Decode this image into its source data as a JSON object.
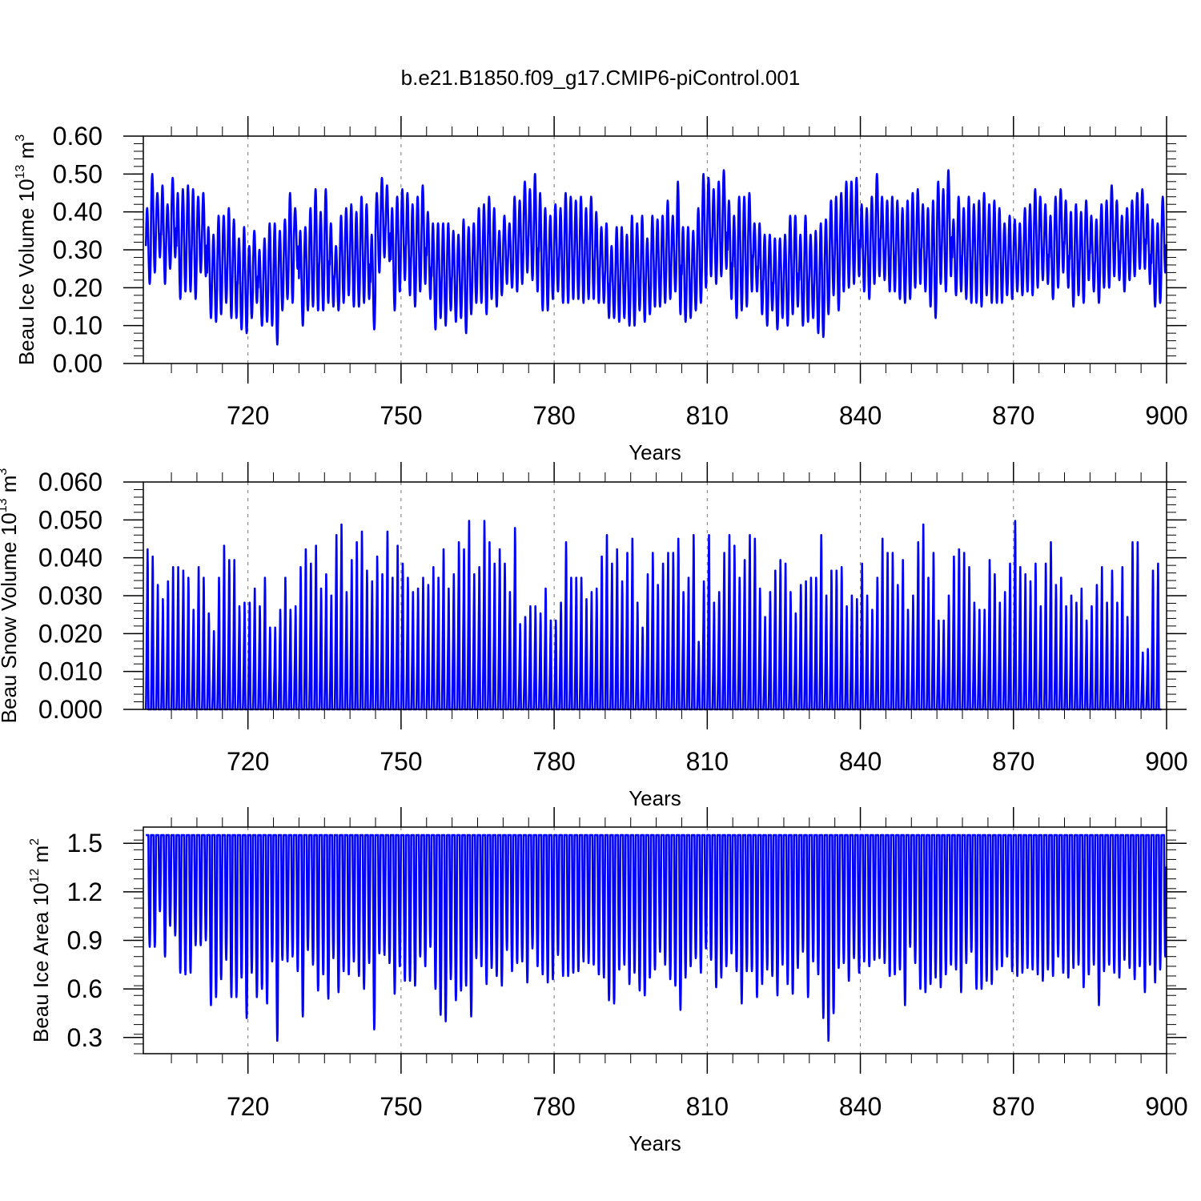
{
  "figure": {
    "title": "b.e21.B1850.f09_g17.CMIP6-piControl.001",
    "line_color": "#0000ff"
  },
  "chart_data": [
    {
      "type": "line",
      "panel": "ice-volume",
      "ylabel": {
        "main": "Beau Ice Volume 10",
        "sup": "13",
        "unit": " m",
        "sup2": "3"
      },
      "xlabel": "Years",
      "xlim": [
        699.5,
        900
      ],
      "ylim": [
        0.0,
        0.6
      ],
      "x_ticks": [
        720,
        750,
        780,
        810,
        840,
        870,
        900
      ],
      "y_ticks": [
        0.0,
        0.1,
        0.2,
        0.3,
        0.4,
        0.5,
        0.6
      ],
      "y_tick_labels": [
        "0.00",
        "0.10",
        "0.20",
        "0.30",
        "0.40",
        "0.50",
        "0.60"
      ],
      "x_grid": true,
      "seasonal_cycle": {
        "start_year": 700,
        "end_year": 900,
        "shape": "sine",
        "annual_maxima": [
          0.41,
          0.5,
          0.45,
          0.47,
          0.42,
          0.49,
          0.45,
          0.46,
          0.47,
          0.46,
          0.44,
          0.45,
          0.36,
          0.34,
          0.39,
          0.39,
          0.41,
          0.38,
          0.33,
          0.36,
          0.31,
          0.35,
          0.3,
          0.33,
          0.37,
          0.37,
          0.35,
          0.38,
          0.45,
          0.41,
          0.35,
          0.36,
          0.41,
          0.46,
          0.4,
          0.46,
          0.37,
          0.31,
          0.39,
          0.41,
          0.42,
          0.4,
          0.44,
          0.42,
          0.34,
          0.45,
          0.49,
          0.47,
          0.41,
          0.44,
          0.46,
          0.45,
          0.42,
          0.44,
          0.47,
          0.4,
          0.37,
          0.37,
          0.37,
          0.37,
          0.35,
          0.34,
          0.38,
          0.36,
          0.37,
          0.41,
          0.42,
          0.44,
          0.41,
          0.35,
          0.39,
          0.37,
          0.44,
          0.43,
          0.48,
          0.46,
          0.5,
          0.45,
          0.41,
          0.39,
          0.42,
          0.41,
          0.45,
          0.44,
          0.43,
          0.44,
          0.41,
          0.44,
          0.4,
          0.36,
          0.37,
          0.31,
          0.36,
          0.36,
          0.34,
          0.39,
          0.37,
          0.39,
          0.33,
          0.39,
          0.38,
          0.39,
          0.43,
          0.39,
          0.48,
          0.36,
          0.36,
          0.35,
          0.41,
          0.5,
          0.49,
          0.46,
          0.48,
          0.51,
          0.43,
          0.39,
          0.44,
          0.44,
          0.45,
          0.37,
          0.37,
          0.34,
          0.34,
          0.33,
          0.33,
          0.34,
          0.39,
          0.39,
          0.34,
          0.39,
          0.34,
          0.35,
          0.37,
          0.38,
          0.43,
          0.44,
          0.45,
          0.48,
          0.48,
          0.49,
          0.42,
          0.41,
          0.44,
          0.5,
          0.44,
          0.43,
          0.44,
          0.43,
          0.41,
          0.43,
          0.45,
          0.46,
          0.42,
          0.41,
          0.43,
          0.48,
          0.46,
          0.51,
          0.38,
          0.44,
          0.41,
          0.44,
          0.42,
          0.43,
          0.45,
          0.42,
          0.43,
          0.41,
          0.37,
          0.39,
          0.38,
          0.37,
          0.41,
          0.42,
          0.46,
          0.44,
          0.42,
          0.39,
          0.44,
          0.46,
          0.43,
          0.4,
          0.42,
          0.4,
          0.43,
          0.39,
          0.38,
          0.42,
          0.43,
          0.47,
          0.43,
          0.39,
          0.41,
          0.43,
          0.45,
          0.46,
          0.42,
          0.38,
          0.37,
          0.44,
          0.46
        ],
        "annual_minima": [
          0.21,
          0.24,
          0.28,
          0.21,
          0.25,
          0.28,
          0.17,
          0.19,
          0.19,
          0.17,
          0.24,
          0.23,
          0.12,
          0.11,
          0.13,
          0.16,
          0.12,
          0.12,
          0.09,
          0.08,
          0.12,
          0.16,
          0.1,
          0.11,
          0.1,
          0.05,
          0.14,
          0.17,
          0.16,
          0.25,
          0.1,
          0.14,
          0.15,
          0.14,
          0.14,
          0.16,
          0.15,
          0.14,
          0.16,
          0.18,
          0.15,
          0.15,
          0.16,
          0.17,
          0.09,
          0.24,
          0.28,
          0.27,
          0.14,
          0.19,
          0.22,
          0.18,
          0.15,
          0.19,
          0.21,
          0.17,
          0.09,
          0.12,
          0.1,
          0.14,
          0.11,
          0.12,
          0.08,
          0.13,
          0.16,
          0.16,
          0.13,
          0.17,
          0.15,
          0.18,
          0.21,
          0.2,
          0.19,
          0.21,
          0.24,
          0.22,
          0.19,
          0.14,
          0.14,
          0.17,
          0.19,
          0.16,
          0.16,
          0.17,
          0.17,
          0.16,
          0.17,
          0.17,
          0.16,
          0.16,
          0.12,
          0.12,
          0.11,
          0.12,
          0.1,
          0.1,
          0.14,
          0.11,
          0.13,
          0.15,
          0.15,
          0.16,
          0.17,
          0.19,
          0.13,
          0.11,
          0.12,
          0.14,
          0.16,
          0.2,
          0.23,
          0.21,
          0.23,
          0.25,
          0.17,
          0.12,
          0.14,
          0.15,
          0.19,
          0.19,
          0.13,
          0.1,
          0.14,
          0.09,
          0.12,
          0.1,
          0.13,
          0.15,
          0.1,
          0.11,
          0.12,
          0.08,
          0.07,
          0.13,
          0.18,
          0.14,
          0.19,
          0.2,
          0.21,
          0.23,
          0.19,
          0.17,
          0.21,
          0.23,
          0.22,
          0.19,
          0.19,
          0.17,
          0.16,
          0.17,
          0.2,
          0.21,
          0.19,
          0.15,
          0.12,
          0.21,
          0.19,
          0.23,
          0.18,
          0.19,
          0.17,
          0.16,
          0.16,
          0.15,
          0.18,
          0.16,
          0.16,
          0.16,
          0.18,
          0.17,
          0.19,
          0.18,
          0.19,
          0.18,
          0.2,
          0.22,
          0.21,
          0.17,
          0.2,
          0.24,
          0.2,
          0.15,
          0.18,
          0.16,
          0.22,
          0.19,
          0.16,
          0.2,
          0.2,
          0.23,
          0.22,
          0.19,
          0.22,
          0.23,
          0.25,
          0.25,
          0.21,
          0.15,
          0.16,
          0.24,
          0.23
        ]
      }
    },
    {
      "type": "line",
      "panel": "snow-volume",
      "ylabel": {
        "main": "Beau Snow Volume 10",
        "sup": "13",
        "unit": " m",
        "sup2": "3"
      },
      "xlabel": "Years",
      "xlim": [
        699.5,
        900
      ],
      "ylim": [
        0.0,
        0.06
      ],
      "x_ticks": [
        720,
        750,
        780,
        810,
        840,
        870,
        900
      ],
      "y_ticks": [
        0.0,
        0.01,
        0.02,
        0.03,
        0.04,
        0.05,
        0.06
      ],
      "y_tick_labels": [
        "0.000",
        "0.010",
        "0.020",
        "0.030",
        "0.040",
        "0.050",
        "0.060"
      ],
      "x_grid": true,
      "seasonal_cycle": {
        "start_year": 700,
        "end_year": 900,
        "shape": "peaked",
        "annual_minimum": 0.0,
        "annual_maxima": [
          0.045,
          0.043,
          0.035,
          0.031,
          0.036,
          0.04,
          0.04,
          0.039,
          0.037,
          0.028,
          0.04,
          0.037,
          0.027,
          0.022,
          0.037,
          0.046,
          0.042,
          0.042,
          0.029,
          0.03,
          0.03,
          0.034,
          0.029,
          0.037,
          0.023,
          0.023,
          0.028,
          0.037,
          0.028,
          0.029,
          0.04,
          0.045,
          0.041,
          0.046,
          0.034,
          0.038,
          0.032,
          0.049,
          0.052,
          0.033,
          0.042,
          0.047,
          0.05,
          0.039,
          0.036,
          0.043,
          0.038,
          0.05,
          0.037,
          0.046,
          0.041,
          0.037,
          0.033,
          0.034,
          0.037,
          0.035,
          0.04,
          0.037,
          0.045,
          0.034,
          0.038,
          0.047,
          0.045,
          0.053,
          0.038,
          0.04,
          0.053,
          0.047,
          0.041,
          0.045,
          0.041,
          0.033,
          0.051,
          0.024,
          0.026,
          0.029,
          0.029,
          0.027,
          0.034,
          0.025,
          0.025,
          0.03,
          0.047,
          0.037,
          0.037,
          0.037,
          0.031,
          0.033,
          0.034,
          0.043,
          0.049,
          0.041,
          0.045,
          0.036,
          0.044,
          0.048,
          0.03,
          0.023,
          0.038,
          0.044,
          0.035,
          0.041,
          0.044,
          0.044,
          0.048,
          0.033,
          0.037,
          0.049,
          0.019,
          0.036,
          0.049,
          0.03,
          0.033,
          0.044,
          0.049,
          0.046,
          0.037,
          0.042,
          0.049,
          0.048,
          0.034,
          0.026,
          0.033,
          0.039,
          0.042,
          0.041,
          0.033,
          0.027,
          0.035,
          0.036,
          0.037,
          0.037,
          0.049,
          0.032,
          0.039,
          0.039,
          0.04,
          0.029,
          0.032,
          0.031,
          0.041,
          0.032,
          0.028,
          0.037,
          0.048,
          0.044,
          0.044,
          0.035,
          0.042,
          0.028,
          0.032,
          0.047,
          0.052,
          0.037,
          0.044,
          0.025,
          0.025,
          0.032,
          0.043,
          0.045,
          0.044,
          0.04,
          0.03,
          0.028,
          0.028,
          0.042,
          0.038,
          0.03,
          0.033,
          0.041,
          0.053,
          0.04,
          0.038,
          0.036,
          0.041,
          0.029,
          0.041,
          0.047,
          0.035,
          0.037,
          0.029,
          0.032,
          0.03,
          0.034,
          0.025,
          0.029,
          0.035,
          0.04,
          0.03,
          0.039,
          0.03,
          0.04,
          0.026,
          0.047,
          0.047,
          0.016,
          0.017,
          0.039,
          0.041
        ]
      }
    },
    {
      "type": "line",
      "panel": "ice-area",
      "ylabel": {
        "main": "Beau Ice Area 10",
        "sup": "12",
        "unit": " m",
        "sup2": "2"
      },
      "xlabel": "Years",
      "xlim": [
        699.5,
        900
      ],
      "ylim": [
        0.2,
        1.6
      ],
      "x_ticks": [
        720,
        750,
        780,
        810,
        840,
        870,
        900
      ],
      "y_ticks": [
        0.3,
        0.6,
        0.9,
        1.2,
        1.5
      ],
      "y_tick_labels": [
        "0.3",
        "0.6",
        "0.9",
        "1.2",
        "1.5"
      ],
      "x_grid": true,
      "seasonal_cycle": {
        "start_year": 700,
        "end_year": 900,
        "shape": "flat-top",
        "annual_maximum": 1.55,
        "annual_minima": [
          0.86,
          0.86,
          1.08,
          0.8,
          0.99,
          0.93,
          0.7,
          0.69,
          0.7,
          0.87,
          0.87,
          0.9,
          0.5,
          0.55,
          0.66,
          0.78,
          0.55,
          0.55,
          0.67,
          0.42,
          0.7,
          0.55,
          0.6,
          0.51,
          0.77,
          0.28,
          0.78,
          0.77,
          0.8,
          0.71,
          0.43,
          0.84,
          0.75,
          0.59,
          0.69,
          0.54,
          0.79,
          0.58,
          0.71,
          0.69,
          0.77,
          0.68,
          0.6,
          0.76,
          0.35,
          0.82,
          0.81,
          0.76,
          0.57,
          0.74,
          0.65,
          0.65,
          0.62,
          0.8,
          0.74,
          0.86,
          0.6,
          0.44,
          0.4,
          0.66,
          0.53,
          0.59,
          0.62,
          0.43,
          0.79,
          0.74,
          0.63,
          0.73,
          0.68,
          0.62,
          0.84,
          0.71,
          0.76,
          0.77,
          0.64,
          0.85,
          0.74,
          0.69,
          0.64,
          0.66,
          0.81,
          0.68,
          0.68,
          0.7,
          0.71,
          0.77,
          0.76,
          0.75,
          0.69,
          0.67,
          0.53,
          0.51,
          0.72,
          0.75,
          0.63,
          0.7,
          0.59,
          0.56,
          0.67,
          0.72,
          0.83,
          0.75,
          0.66,
          0.62,
          0.47,
          0.67,
          0.74,
          0.79,
          0.7,
          0.85,
          0.78,
          0.61,
          0.67,
          0.74,
          0.82,
          0.71,
          0.51,
          0.71,
          0.71,
          0.55,
          0.63,
          0.72,
          0.68,
          0.56,
          0.75,
          0.63,
          0.57,
          0.73,
          0.83,
          0.55,
          0.77,
          0.69,
          0.42,
          0.28,
          0.45,
          0.73,
          0.76,
          0.65,
          0.79,
          0.7,
          0.77,
          0.74,
          0.78,
          0.79,
          0.76,
          0.68,
          0.69,
          0.72,
          0.5,
          0.86,
          0.76,
          0.6,
          0.58,
          0.63,
          0.67,
          0.61,
          0.69,
          0.75,
          0.72,
          0.58,
          0.76,
          0.83,
          0.6,
          0.6,
          0.65,
          0.63,
          0.72,
          0.74,
          0.8,
          0.71,
          0.68,
          0.7,
          0.73,
          0.72,
          0.69,
          0.65,
          0.72,
          0.68,
          0.8,
          0.7,
          0.67,
          0.73,
          0.75,
          0.61,
          0.69,
          0.75,
          0.5,
          0.71,
          0.75,
          0.7,
          0.67,
          0.78,
          0.73,
          0.66,
          0.74,
          0.58,
          0.75,
          0.64,
          0.72,
          0.8,
          0.58,
          0.58,
          0.92,
          0.92
        ]
      }
    }
  ]
}
